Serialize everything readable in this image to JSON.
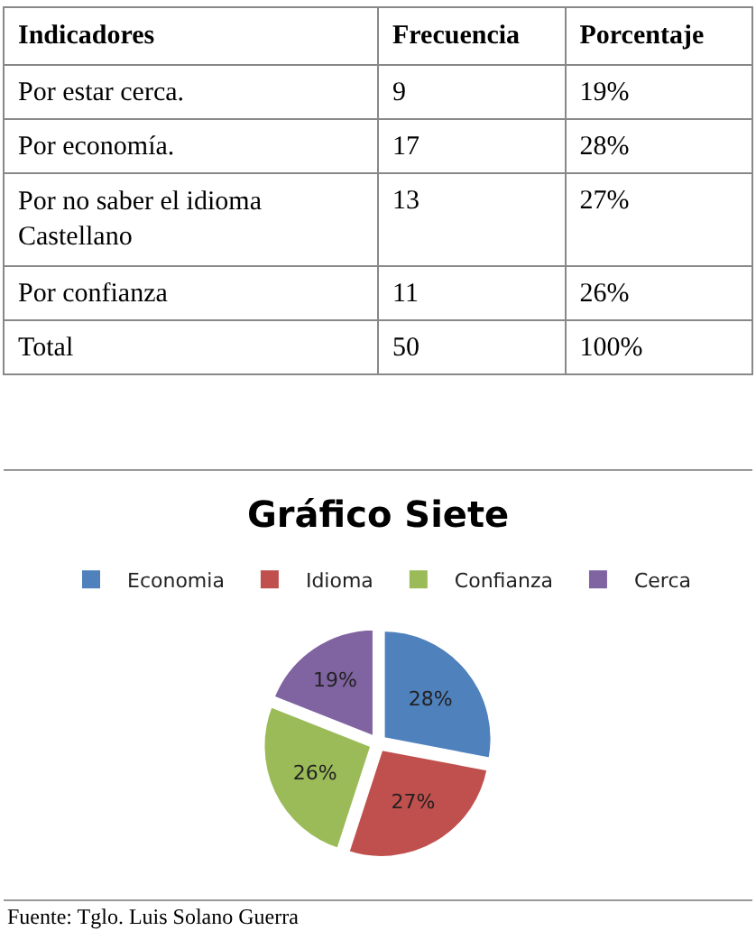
{
  "chart_data": [
    {
      "type": "other",
      "title": "Indicadores",
      "categories": [
        "Por estar cerca.",
        "Por economía.",
        "Por no saber el idioma Castellano",
        "Por confianza",
        "Total"
      ],
      "series": [
        {
          "name": "Frecuencia",
          "values": [
            9,
            17,
            13,
            11,
            50
          ]
        },
        {
          "name": "Porcentaje",
          "values": [
            19,
            28,
            27,
            26,
            100
          ],
          "value_labels": [
            "19%",
            "28%",
            "27%",
            "26%",
            "100%"
          ]
        }
      ],
      "data_labels": true
    },
    {
      "type": "pie",
      "title": "Gráfico Siete",
      "categories": [
        "Economia",
        "Idioma",
        "Confianza",
        "Cerca"
      ],
      "values": [
        28,
        27,
        26,
        19
      ],
      "colors": [
        "#4f81bd",
        "#c0504d",
        "#9bbb59",
        "#8064a2"
      ],
      "value_labels": [
        "28%",
        "27%",
        "26%",
        "19%"
      ],
      "legend": "top",
      "annotations": [
        "Fuente: Tglo. Luis Solano Guerra"
      ]
    }
  ]
}
